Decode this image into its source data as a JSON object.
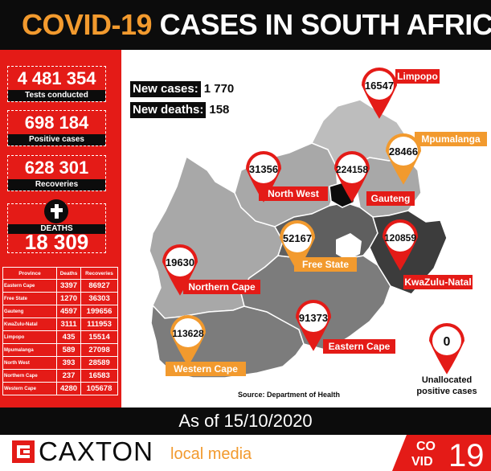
{
  "header": {
    "title_highlight": "COVID-19",
    "title_rest": "CASES IN SOUTH AFRICA"
  },
  "stats": {
    "tests": {
      "value": "4 481 354",
      "label": "Tests conducted"
    },
    "positive": {
      "value": "698 184",
      "label": "Positive cases"
    },
    "recoveries": {
      "value": "628 301",
      "label": "Recoveries"
    },
    "deaths": {
      "value": "18 309",
      "label": "DEATHS"
    }
  },
  "table": {
    "headers": [
      "Province",
      "Deaths",
      "Recoveries"
    ],
    "rows": [
      [
        "Eastern Cape",
        "3397",
        "86927"
      ],
      [
        "Free State",
        "1270",
        "36303"
      ],
      [
        "Gauteng",
        "4597",
        "199656"
      ],
      [
        "KwaZulu-Natal",
        "3111",
        "111953"
      ],
      [
        "Limpopo",
        "435",
        "15514"
      ],
      [
        "Mpumalanga",
        "589",
        "27098"
      ],
      [
        "North West",
        "393",
        "28589"
      ],
      [
        "Northern Cape",
        "237",
        "16583"
      ],
      [
        "Western Cape",
        "4280",
        "105678"
      ]
    ]
  },
  "new_cases": {
    "label": "New cases:",
    "value": "1 770"
  },
  "new_deaths": {
    "label": "New deaths:",
    "value": "158"
  },
  "markers": [
    {
      "province": "Limpopo",
      "cases": "16547",
      "color": "#e41b17"
    },
    {
      "province": "Mpumalanga",
      "cases": "28466",
      "color": "#f29a2e"
    },
    {
      "province": "North West",
      "cases": "31356",
      "color": "#e41b17"
    },
    {
      "province": "Gauteng",
      "cases": "224158",
      "color": "#e41b17"
    },
    {
      "province": "Free State",
      "cases": "52167",
      "color": "#f29a2e"
    },
    {
      "province": "KwaZulu-Natal",
      "cases": "120859",
      "color": "#e41b17"
    },
    {
      "province": "Northern Cape",
      "cases": "19630",
      "color": "#e41b17"
    },
    {
      "province": "Eastern Cape",
      "cases": "91373",
      "color": "#e41b17"
    },
    {
      "province": "Western Cape",
      "cases": "113628",
      "color": "#f29a2e"
    }
  ],
  "unallocated": {
    "value": "0",
    "label_line1": "Unallocated",
    "label_line2": "positive cases"
  },
  "source": "Source: Department of Health",
  "date": "As of 15/10/2020",
  "footer": {
    "brand": "CAXTON",
    "brand_sub": "local media",
    "covid_logo_top": "CO",
    "covid_logo_bottom": "VID",
    "covid_logo_num": "19"
  },
  "colors": {
    "red": "#e41b17",
    "orange": "#f29a2e",
    "black": "#0c0c0c"
  }
}
